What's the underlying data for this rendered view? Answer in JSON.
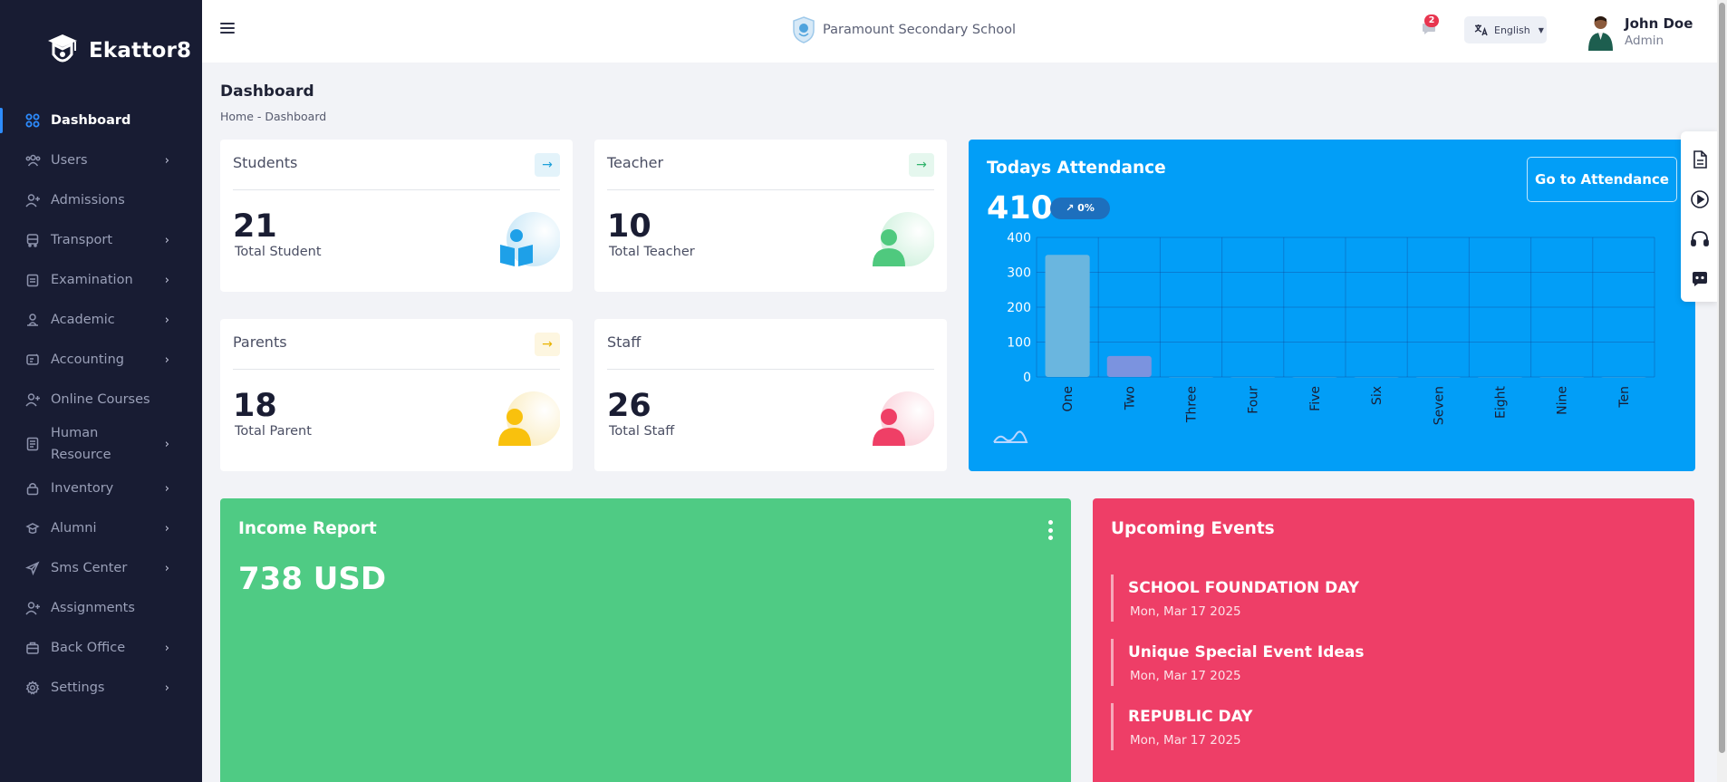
{
  "brand": {
    "name": "Ekattor8",
    "logo_icon": "graduation-cap-shield-icon"
  },
  "sidebar": {
    "items": [
      {
        "label": "Dashboard",
        "icon": "grid-icon",
        "active": true,
        "has_submenu": false
      },
      {
        "label": "Users",
        "icon": "users-icon",
        "has_submenu": true
      },
      {
        "label": "Admissions",
        "icon": "user-plus-icon",
        "has_submenu": false
      },
      {
        "label": "Transport",
        "icon": "bus-icon",
        "has_submenu": true
      },
      {
        "label": "Examination",
        "icon": "clipboard-icon",
        "has_submenu": true
      },
      {
        "label": "Academic",
        "icon": "academic-icon",
        "has_submenu": true
      },
      {
        "label": "Accounting",
        "icon": "wallet-icon",
        "has_submenu": true
      },
      {
        "label": "Online Courses",
        "icon": "user-plus-icon",
        "has_submenu": false
      },
      {
        "label": "Human Resource",
        "icon": "document-icon",
        "has_submenu": true
      },
      {
        "label": "Inventory",
        "icon": "lock-box-icon",
        "has_submenu": true
      },
      {
        "label": "Alumni",
        "icon": "alumni-icon",
        "has_submenu": true
      },
      {
        "label": "Sms Center",
        "icon": "send-icon",
        "has_submenu": true
      },
      {
        "label": "Assignments",
        "icon": "user-plus-icon",
        "has_submenu": false
      },
      {
        "label": "Back Office",
        "icon": "briefcase-icon",
        "has_submenu": true
      },
      {
        "label": "Settings",
        "icon": "gear-icon",
        "has_submenu": true
      }
    ]
  },
  "topbar": {
    "school_name": "Paramount Secondary School",
    "notification_count": "2",
    "language": "English",
    "user": {
      "name": "John Doe",
      "role": "Admin"
    }
  },
  "page": {
    "title": "Dashboard",
    "breadcrumb": "Home - Dashboard"
  },
  "stats": {
    "students": {
      "title": "Students",
      "value": "21",
      "label": "Total Student",
      "color": "#1ea0e8"
    },
    "teacher": {
      "title": "Teacher",
      "value": "10",
      "label": "Total Teacher",
      "color": "#4fc97e"
    },
    "parents": {
      "title": "Parents",
      "value": "18",
      "label": "Total Parent",
      "color": "#f9c10d"
    },
    "staff": {
      "title": "Staff",
      "value": "26",
      "label": "Total Staff",
      "color": "#ef3f66"
    }
  },
  "attendance": {
    "title": "Todays Attendance",
    "count": "410",
    "change": "0%",
    "button_label": "Go to Attendance",
    "color": "#029ef7"
  },
  "chart_data": {
    "type": "bar",
    "categories": [
      "One",
      "Two",
      "Three",
      "Four",
      "Five",
      "Six",
      "Seven",
      "Eight",
      "Nine",
      "Ten"
    ],
    "values": [
      350,
      60,
      0,
      0,
      0,
      0,
      0,
      0,
      0,
      0
    ],
    "yticks": [
      400,
      300,
      200,
      100,
      0
    ],
    "ylim": [
      0,
      400
    ],
    "grid": true,
    "bar_color": "#6ab6df"
  },
  "income": {
    "title": "Income Report",
    "value": "738 USD",
    "color": "#4fcb84"
  },
  "events": {
    "title": "Upcoming Events",
    "color": "#ee3e67",
    "items": [
      {
        "name": "SCHOOL FOUNDATION DAY",
        "date": "Mon, Mar 17 2025"
      },
      {
        "name": "Unique Special Event Ideas",
        "date": "Mon, Mar 17 2025"
      },
      {
        "name": "REPUBLIC DAY",
        "date": "Mon, Mar 17 2025"
      }
    ]
  },
  "dock": {
    "icons": [
      "document-icon",
      "play-circle-icon",
      "headset-icon",
      "chat-bot-icon"
    ]
  }
}
